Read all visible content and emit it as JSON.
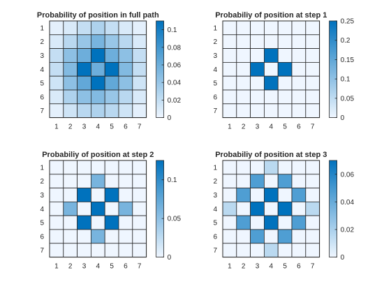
{
  "chart_data": [
    {
      "type": "heatmap",
      "title": "Probability of position in full path",
      "x": [
        "1",
        "2",
        "3",
        "4",
        "5",
        "6",
        "7"
      ],
      "y": [
        "1",
        "2",
        "3",
        "4",
        "5",
        "6",
        "7"
      ],
      "values": [
        [
          0.005,
          0.01,
          0.02,
          0.03,
          0.02,
          0.01,
          0.005
        ],
        [
          0.01,
          0.025,
          0.04,
          0.055,
          0.04,
          0.025,
          0.01
        ],
        [
          0.02,
          0.045,
          0.06,
          0.11,
          0.06,
          0.045,
          0.02
        ],
        [
          0.02,
          0.05,
          0.11,
          0.06,
          0.11,
          0.05,
          0.02
        ],
        [
          0.015,
          0.045,
          0.065,
          0.11,
          0.065,
          0.045,
          0.015
        ],
        [
          0.01,
          0.03,
          0.045,
          0.05,
          0.04,
          0.025,
          0.01
        ],
        [
          0.005,
          0.015,
          0.025,
          0.03,
          0.025,
          0.015,
          0.005
        ]
      ],
      "colorbar": {
        "range": [
          0,
          0.11
        ],
        "ticks": [
          "0",
          "0.02",
          "0.04",
          "0.06",
          "0.08",
          "0.1"
        ],
        "tick_values": [
          0,
          0.02,
          0.04,
          0.06,
          0.08,
          0.1
        ]
      }
    },
    {
      "type": "heatmap",
      "title": "Probabiliy of position at step 1",
      "x": [
        "1",
        "2",
        "3",
        "4",
        "5",
        "6",
        "7"
      ],
      "y": [
        "1",
        "2",
        "3",
        "4",
        "5",
        "6",
        "7"
      ],
      "values": [
        [
          0,
          0,
          0,
          0,
          0,
          0,
          0
        ],
        [
          0,
          0,
          0,
          0,
          0,
          0,
          0
        ],
        [
          0,
          0,
          0,
          0.25,
          0,
          0,
          0
        ],
        [
          0,
          0,
          0.25,
          0,
          0.25,
          0,
          0
        ],
        [
          0,
          0,
          0,
          0.25,
          0,
          0,
          0
        ],
        [
          0,
          0,
          0,
          0,
          0,
          0,
          0
        ],
        [
          0,
          0,
          0,
          0,
          0,
          0,
          0
        ]
      ],
      "colorbar": {
        "range": [
          0,
          0.25
        ],
        "ticks": [
          "0",
          "0.05",
          "0.1",
          "0.15",
          "0.2",
          "0.25"
        ],
        "tick_values": [
          0,
          0.05,
          0.1,
          0.15,
          0.2,
          0.25
        ]
      }
    },
    {
      "type": "heatmap",
      "title": "Probabiliy of position at step 2",
      "x": [
        "1",
        "2",
        "3",
        "4",
        "5",
        "6",
        "7"
      ],
      "y": [
        "1",
        "2",
        "3",
        "4",
        "5",
        "6",
        "7"
      ],
      "values": [
        [
          0,
          0,
          0,
          0,
          0,
          0,
          0
        ],
        [
          0,
          0,
          0,
          0.0625,
          0,
          0,
          0
        ],
        [
          0,
          0,
          0.125,
          0,
          0.125,
          0,
          0
        ],
        [
          0,
          0.0625,
          0,
          0.25,
          0,
          0.0625,
          0
        ],
        [
          0,
          0,
          0.125,
          0,
          0.125,
          0,
          0
        ],
        [
          0,
          0,
          0,
          0.0625,
          0,
          0,
          0
        ],
        [
          0,
          0,
          0,
          0,
          0,
          0,
          0
        ]
      ],
      "colorbar": {
        "range": [
          0,
          0.125
        ],
        "ticks": [
          "0",
          "0.05",
          "0.1"
        ],
        "tick_values": [
          0,
          0.05,
          0.1
        ]
      }
    },
    {
      "type": "heatmap",
      "title": "Probabiliy of position at step 3",
      "x": [
        "1",
        "2",
        "3",
        "4",
        "5",
        "6",
        "7"
      ],
      "y": [
        "1",
        "2",
        "3",
        "4",
        "5",
        "6",
        "7"
      ],
      "values": [
        [
          0,
          0,
          0,
          0.0156,
          0,
          0,
          0
        ],
        [
          0,
          0,
          0.0469,
          0,
          0.0469,
          0,
          0
        ],
        [
          0,
          0.0469,
          0,
          0.1406,
          0,
          0.0469,
          0
        ],
        [
          0.0156,
          0,
          0.1406,
          0,
          0.1406,
          0,
          0.0156
        ],
        [
          0,
          0.0469,
          0,
          0.1406,
          0,
          0.0469,
          0
        ],
        [
          0,
          0,
          0.0469,
          0,
          0.0469,
          0,
          0
        ],
        [
          0,
          0,
          0,
          0.0156,
          0,
          0,
          0
        ]
      ],
      "colorbar": {
        "range": [
          0,
          0.07
        ],
        "ticks": [
          "0",
          "0.02",
          "0.04",
          "0.06"
        ],
        "tick_values": [
          0,
          0.02,
          0.04,
          0.06
        ]
      }
    }
  ]
}
